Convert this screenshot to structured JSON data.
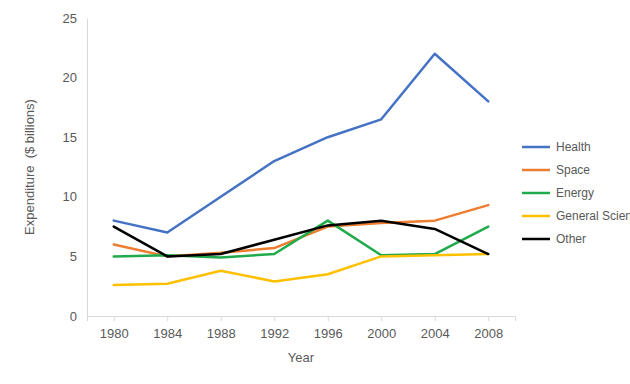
{
  "chart_data": {
    "type": "line",
    "x_label": "Year",
    "y_label": "Expenditure  ($ billions)",
    "categories": [
      "1980",
      "1984",
      "1988",
      "1992",
      "1996",
      "2000",
      "2004",
      "2008"
    ],
    "series": [
      {
        "name": "Health",
        "color": "#4472c4",
        "values": [
          8,
          7,
          10,
          13,
          15,
          16.5,
          22,
          18
        ]
      },
      {
        "name": "Space",
        "color": "#ed7d31",
        "values": [
          6,
          5,
          5.3,
          5.7,
          7.5,
          7.8,
          8,
          9.3
        ]
      },
      {
        "name": "Energy",
        "color": "#1faa4b",
        "values": [
          5,
          5.1,
          4.9,
          5.2,
          8,
          5.1,
          5.2,
          7.5
        ]
      },
      {
        "name": "General Science",
        "color": "#ffc000",
        "values": [
          2.6,
          2.7,
          3.8,
          2.9,
          3.5,
          5,
          5.1,
          5.2
        ]
      },
      {
        "name": "Other",
        "color": "#000000",
        "values": [
          7.5,
          5,
          5.2,
          6.4,
          7.6,
          8,
          7.3,
          5.2
        ]
      }
    ],
    "ylim": [
      0,
      25
    ],
    "yticks": [
      0,
      5,
      10,
      15,
      20,
      25
    ],
    "grid": false,
    "legend": "right"
  }
}
